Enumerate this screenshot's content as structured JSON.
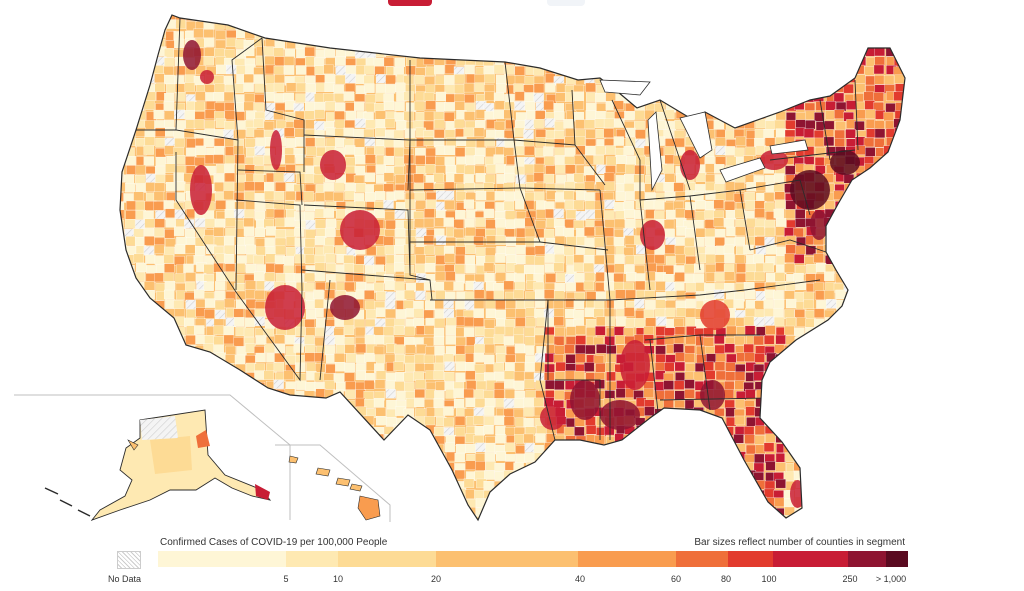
{
  "legend": {
    "title": "Confirmed Cases of COVID-19 per 100,000 People",
    "note": "Bar sizes reflect number of counties in segment",
    "no_data_label": "No Data",
    "ticks": [
      "5",
      "10",
      "20",
      "40",
      "60",
      "80",
      "100",
      "250",
      "> 1,000"
    ],
    "segments": [
      {
        "color": "#fef6d6",
        "share": 0.17
      },
      {
        "color": "#fee9b2",
        "share": 0.07
      },
      {
        "color": "#fddb95",
        "share": 0.13
      },
      {
        "color": "#fcc070",
        "share": 0.19
      },
      {
        "color": "#f99c4f",
        "share": 0.13
      },
      {
        "color": "#ef6f3a",
        "share": 0.07
      },
      {
        "color": "#e23b2e",
        "share": 0.06
      },
      {
        "color": "#c81d35",
        "share": 0.1
      },
      {
        "color": "#8e1431",
        "share": 0.05
      },
      {
        "color": "#5a0a20",
        "share": 0.03
      }
    ]
  },
  "colors": {
    "state_border": "#2b2b2b",
    "no_data": "#e8e8e8",
    "inset_frame": "#bfbfbf",
    "top_legend_dark": "#c81d35",
    "top_legend_light": "#f1f4f8"
  }
}
